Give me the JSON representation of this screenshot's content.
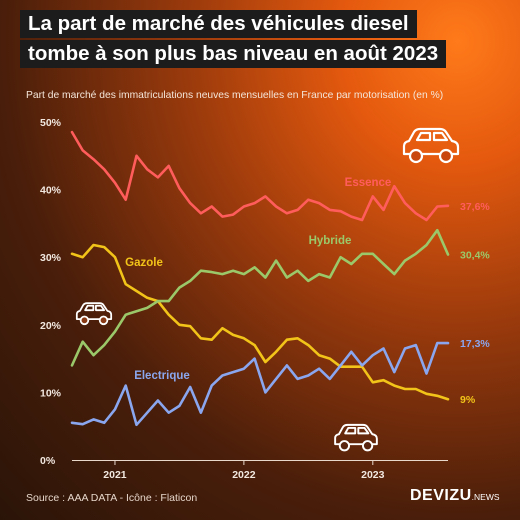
{
  "title_lines": [
    "La part de marché des véhicules diesel",
    "tombe à son plus bas niveau en août 2023"
  ],
  "subtitle": "Part de marché des immatriculations neuves mensuelles en France par motorisation (en %)",
  "source": "Source : AAA DATA - Icône : Flaticon",
  "brand": {
    "name": "DEVIZU",
    "suffix": ".NEWS"
  },
  "icons": [
    "car-icon",
    "car-icon",
    "car-icon"
  ],
  "chart_data": {
    "type": "line",
    "x_start": "2020-09",
    "x_end": "2023-08",
    "x_ticks": [
      "2021",
      "2022",
      "2023"
    ],
    "y_ticks": [
      "0%",
      "10%",
      "20%",
      "30%",
      "40%",
      "50%"
    ],
    "ylim": [
      0,
      50
    ],
    "grid": false,
    "series": [
      {
        "name": "Essence",
        "color": "#ff5c5c",
        "end_label": "37,6%",
        "values": [
          48.5,
          45.8,
          44.5,
          43.0,
          41.0,
          38.5,
          45.0,
          43.0,
          41.8,
          43.5,
          40.2,
          38.0,
          36.5,
          37.5,
          36.0,
          36.3,
          37.5,
          38.0,
          39.0,
          37.5,
          36.5,
          37.0,
          38.5,
          38.0,
          37.0,
          36.8,
          36.0,
          35.5,
          39.0,
          37.0,
          40.5,
          38.0,
          36.5,
          35.5,
          37.5,
          37.6
        ]
      },
      {
        "name": "Gazole",
        "color": "#f2c419",
        "end_label": "9%",
        "values": [
          30.5,
          30.0,
          31.8,
          31.5,
          30.0,
          26.0,
          25.0,
          24.0,
          23.5,
          21.5,
          20.0,
          19.8,
          18.0,
          17.8,
          19.5,
          18.5,
          18.0,
          17.0,
          14.5,
          16.0,
          17.8,
          18.0,
          17.0,
          15.5,
          15.0,
          13.8,
          13.8,
          13.8,
          11.5,
          11.8,
          11.0,
          10.5,
          10.5,
          9.8,
          9.5,
          9.0
        ]
      },
      {
        "name": "Hybride",
        "color": "#9bc96a",
        "end_label": "30,4%",
        "values": [
          14.0,
          17.5,
          15.5,
          17.0,
          19.0,
          21.5,
          22.0,
          22.5,
          23.5,
          23.5,
          25.5,
          26.5,
          28.0,
          27.8,
          27.5,
          28.0,
          27.5,
          28.5,
          27.0,
          29.5,
          27.0,
          28.0,
          26.5,
          27.5,
          27.0,
          30.0,
          29.0,
          30.5,
          30.5,
          29.0,
          27.5,
          29.5,
          30.5,
          31.8,
          34.0,
          30.4
        ]
      },
      {
        "name": "Electrique",
        "color": "#8aa6ee",
        "end_label": "17,3%",
        "values": [
          5.5,
          5.3,
          6.0,
          5.5,
          7.5,
          11.0,
          5.2,
          7.0,
          8.8,
          7.0,
          8.0,
          10.8,
          7.0,
          11.0,
          12.5,
          13.0,
          13.5,
          15.0,
          10.0,
          12.0,
          14.0,
          12.0,
          12.5,
          13.5,
          12.0,
          14.0,
          16.0,
          14.0,
          15.5,
          16.5,
          13.0,
          16.5,
          17.0,
          12.8,
          17.3,
          17.3
        ]
      }
    ]
  }
}
